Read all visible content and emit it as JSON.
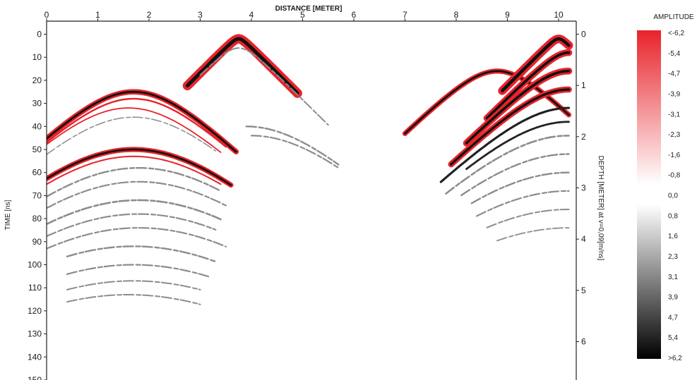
{
  "chart_data": {
    "type": "heatmap",
    "title": "",
    "xlabel": "DISTANCE [METER]",
    "ylabel": "TIME [ns]",
    "y2label": "DEPTH [METER] at v=0,09[m/ns]",
    "xlim": [
      0,
      10.2
    ],
    "ylim": [
      0,
      152
    ],
    "y2lim": [
      0,
      6.84
    ],
    "x_ticks": [
      "0",
      "1",
      "2",
      "3",
      "4",
      "5",
      "6",
      "7",
      "8",
      "9",
      "10"
    ],
    "y_ticks": [
      "0",
      "10",
      "20",
      "30",
      "40",
      "50",
      "60",
      "70",
      "80",
      "90",
      "100",
      "110",
      "120",
      "130",
      "140",
      "150"
    ],
    "y2_ticks": [
      "0",
      "1",
      "2",
      "3",
      "4",
      "5",
      "6"
    ],
    "colorbar": {
      "title": "AMPLITUDE",
      "labels": [
        "<-6,2",
        "-5,4",
        "-4,7",
        "-3,9",
        "-3,1",
        "-2,3",
        "-1,6",
        "-0,8",
        "0,0",
        "0,8",
        "1,6",
        "2,3",
        "3,1",
        "3,9",
        "4,7",
        "5,4",
        ">6,2"
      ],
      "colors": {
        "negative": "#e8232a",
        "zero": "#ffffff",
        "positive": "#000000"
      }
    },
    "hyperbolas": [
      {
        "apex_x": 1.7,
        "apex_t": 25,
        "left_x": 0.0,
        "right_x": 3.7,
        "kind": "dual",
        "width": 3.2
      },
      {
        "apex_x": 1.7,
        "apex_t": 28,
        "left_x": 0.0,
        "right_x": 3.5,
        "kind": "red",
        "width": 2.4
      },
      {
        "apex_x": 1.6,
        "apex_t": 32,
        "left_x": 0.0,
        "right_x": 3.4,
        "kind": "red",
        "width": 1.8
      },
      {
        "apex_x": 1.7,
        "apex_t": 36,
        "left_x": 0.0,
        "right_x": 3.3,
        "kind": "gray",
        "width": 1.5
      },
      {
        "apex_x": 1.7,
        "apex_t": 50,
        "left_x": 0.0,
        "right_x": 3.6,
        "kind": "dual",
        "width": 3.0
      },
      {
        "apex_x": 1.7,
        "apex_t": 53,
        "left_x": 0.0,
        "right_x": 3.4,
        "kind": "red",
        "width": 2.0
      },
      {
        "apex_x": 1.8,
        "apex_t": 58,
        "left_x": 0.0,
        "right_x": 3.4,
        "kind": "gray",
        "width": 2.4
      },
      {
        "apex_x": 1.8,
        "apex_t": 64,
        "left_x": 0.0,
        "right_x": 3.5,
        "kind": "gray",
        "width": 2.2
      },
      {
        "apex_x": 1.8,
        "apex_t": 72,
        "left_x": 0.0,
        "right_x": 3.4,
        "kind": "gray",
        "width": 2.6
      },
      {
        "apex_x": 1.8,
        "apex_t": 78,
        "left_x": 0.0,
        "right_x": 3.3,
        "kind": "gray",
        "width": 2.2
      },
      {
        "apex_x": 1.8,
        "apex_t": 84,
        "left_x": 0.0,
        "right_x": 3.5,
        "kind": "gray",
        "width": 2.2
      },
      {
        "apex_x": 1.7,
        "apex_t": 92,
        "left_x": 0.4,
        "right_x": 3.3,
        "kind": "gray",
        "width": 2.4
      },
      {
        "apex_x": 1.7,
        "apex_t": 100,
        "left_x": 0.4,
        "right_x": 3.2,
        "kind": "gray",
        "width": 2.2
      },
      {
        "apex_x": 1.7,
        "apex_t": 107,
        "left_x": 0.4,
        "right_x": 3.0,
        "kind": "gray",
        "width": 2.0
      },
      {
        "apex_x": 1.6,
        "apex_t": 113,
        "left_x": 0.4,
        "right_x": 3.0,
        "kind": "gray",
        "width": 2.0
      },
      {
        "apex_x": 3.75,
        "apex_t": 2,
        "left_x": 2.75,
        "right_x": 4.9,
        "kind": "dual",
        "width": 5.5
      },
      {
        "apex_x": 3.75,
        "apex_t": 6,
        "left_x": 3.0,
        "right_x": 5.5,
        "kind": "gray",
        "width": 2.0
      },
      {
        "apex_x": 3.9,
        "apex_t": 40,
        "left_x": 3.9,
        "right_x": 5.7,
        "kind": "gray",
        "width": 2.4
      },
      {
        "apex_x": 4.0,
        "apex_t": 44,
        "left_x": 4.0,
        "right_x": 5.7,
        "kind": "gray",
        "width": 2.2
      },
      {
        "apex_x": 8.8,
        "apex_t": 16,
        "left_x": 7.0,
        "right_x": 10.2,
        "kind": "dual",
        "width": 3.0
      },
      {
        "apex_x": 10.0,
        "apex_t": 2,
        "left_x": 8.9,
        "right_x": 10.2,
        "kind": "dual",
        "width": 5.0
      },
      {
        "apex_x": 10.2,
        "apex_t": 8,
        "left_x": 8.6,
        "right_x": 10.2,
        "kind": "dual",
        "width": 4.0
      },
      {
        "apex_x": 10.2,
        "apex_t": 16,
        "left_x": 8.2,
        "right_x": 10.2,
        "kind": "dual",
        "width": 4.0
      },
      {
        "apex_x": 10.2,
        "apex_t": 24,
        "left_x": 7.9,
        "right_x": 10.2,
        "kind": "dual",
        "width": 3.6
      },
      {
        "apex_x": 10.2,
        "apex_t": 32,
        "left_x": 7.7,
        "right_x": 10.2,
        "kind": "dark",
        "width": 3.2
      },
      {
        "apex_x": 10.2,
        "apex_t": 38,
        "left_x": 8.2,
        "right_x": 10.2,
        "kind": "dark",
        "width": 2.8
      },
      {
        "apex_x": 10.2,
        "apex_t": 44,
        "left_x": 7.8,
        "right_x": 10.2,
        "kind": "gray",
        "width": 2.6
      },
      {
        "apex_x": 10.2,
        "apex_t": 52,
        "left_x": 8.1,
        "right_x": 10.2,
        "kind": "gray",
        "width": 2.4
      },
      {
        "apex_x": 10.2,
        "apex_t": 60,
        "left_x": 8.3,
        "right_x": 10.2,
        "kind": "gray",
        "width": 2.4
      },
      {
        "apex_x": 10.2,
        "apex_t": 68,
        "left_x": 8.4,
        "right_x": 10.2,
        "kind": "gray",
        "width": 2.2
      },
      {
        "apex_x": 10.2,
        "apex_t": 76,
        "left_x": 8.6,
        "right_x": 10.2,
        "kind": "gray",
        "width": 2.0
      },
      {
        "apex_x": 10.2,
        "apex_t": 84,
        "left_x": 8.8,
        "right_x": 10.2,
        "kind": "gray",
        "width": 1.8
      }
    ]
  }
}
